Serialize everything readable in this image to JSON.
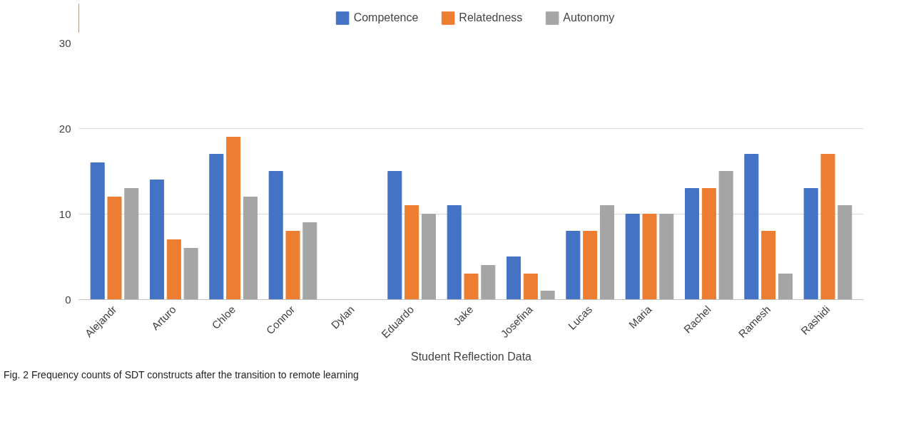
{
  "chart_data": {
    "type": "bar",
    "categories": [
      "Alejandr",
      "Arturo",
      "Chloe",
      "Connor",
      "Dylan",
      "Eduardo",
      "Jake",
      "Josefina",
      "Lucas",
      "Maria",
      "Rachel",
      "Ramesh",
      "Rashidi"
    ],
    "series": [
      {
        "name": "Competence",
        "color": "#4472c4",
        "values": [
          16,
          14,
          17,
          15,
          0,
          15,
          11,
          5,
          8,
          10,
          13,
          17,
          13
        ]
      },
      {
        "name": "Relatedness",
        "color": "#ed7d31",
        "values": [
          12,
          7,
          19,
          8,
          0,
          11,
          3,
          3,
          8,
          10,
          13,
          8,
          17
        ]
      },
      {
        "name": "Autonomy",
        "color": "#a5a5a5",
        "values": [
          13,
          6,
          12,
          9,
          0,
          10,
          4,
          1,
          11,
          10,
          15,
          3,
          11
        ]
      }
    ],
    "xlabel": "Student Reflection Data",
    "ylim": [
      0,
      30
    ],
    "yticks": [
      0,
      10,
      20,
      30
    ],
    "grid": "y",
    "legend": "top",
    "annotations": [
      "Fig. 2  Frequency counts of SDT constructs after the transition to remote learning"
    ]
  }
}
